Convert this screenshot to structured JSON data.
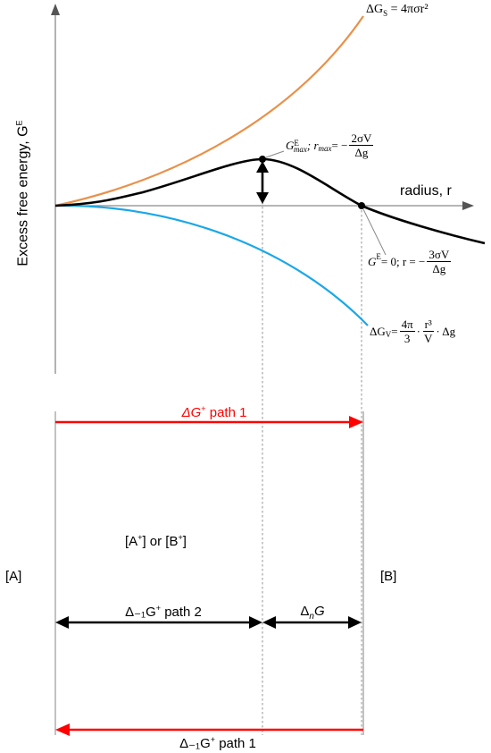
{
  "y_axis_label": "Excess free energy, G",
  "y_axis_label_sup": "E",
  "x_axis_label": "radius, r",
  "curves": {
    "surface": {
      "label_lhs": "ΔG",
      "label_sub": "S",
      "label_rhs": " = 4πσr²",
      "color": "#e8914a"
    },
    "volume": {
      "label_lhs": "ΔG",
      "label_sub": "V",
      "label_mid": " = ",
      "coef_num": "4π",
      "coef_den": "3",
      "dot1": " · ",
      "r_num": "r³",
      "r_den": "V",
      "dot2": " · Δg",
      "color": "#1aa7e8"
    },
    "total": {
      "color": "#000000"
    }
  },
  "max_point": {
    "g": "G",
    "g_sup": "E",
    "g_sub": "max",
    "sep": "; r",
    "r_sub": "max",
    "eq": " = −",
    "num": "2σV",
    "den": "Δg"
  },
  "zero_point": {
    "g": "G",
    "g_sup": "E",
    "mid": " = 0;  r = −",
    "num": "3σV",
    "den": "Δg"
  },
  "arrows": {
    "top_path1": {
      "text": "ΔG",
      "sup": "+",
      "rest": " path 1",
      "color": "#ff0000"
    },
    "path2": {
      "text": "Δ₋₁G",
      "sup": "+",
      "rest": " path 2",
      "color": "#000000"
    },
    "delta_n": {
      "text": "Δ",
      "sub": "n",
      "rest": "G",
      "color": "#000000"
    },
    "bottom_path1": {
      "text": "Δ₋₁G",
      "sup": "+",
      "rest": " path 1",
      "color": "#ff0000"
    }
  },
  "states": {
    "a": "[A]",
    "b": "[B]",
    "middle_prefix": "[A",
    "middle_sup1": "+",
    "middle_mid": "] or [B",
    "middle_sup2": "+",
    "middle_suffix": "]"
  }
}
